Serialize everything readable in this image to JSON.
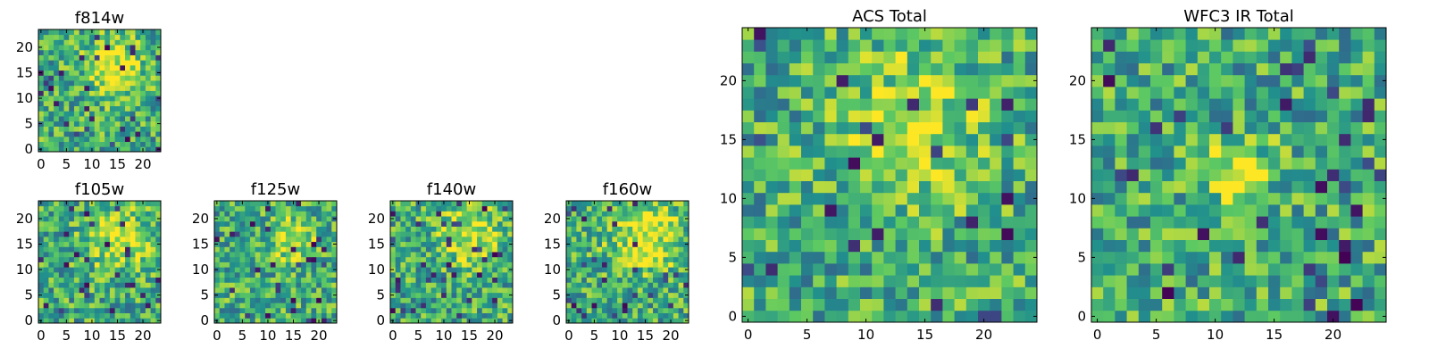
{
  "chart_data": [
    {
      "type": "heatmap",
      "title": "f814w",
      "grid_size": 24,
      "xlim": [
        0,
        24
      ],
      "ylim": [
        0,
        24
      ],
      "xticks": [
        "0",
        "5",
        "10",
        "15",
        "20"
      ],
      "yticks": [
        "0",
        "5",
        "10",
        "15",
        "20"
      ],
      "colormap": "viridis",
      "hotspot": {
        "x": 15,
        "y": 16,
        "radius": 4
      }
    },
    {
      "type": "heatmap",
      "title": "f105w",
      "grid_size": 24,
      "xlim": [
        0,
        24
      ],
      "ylim": [
        0,
        24
      ],
      "xticks": [
        "0",
        "5",
        "10",
        "15",
        "20"
      ],
      "yticks": [
        "0",
        "5",
        "10",
        "15",
        "20"
      ],
      "colormap": "viridis",
      "hotspot": {
        "x": 15,
        "y": 16,
        "radius": 4
      }
    },
    {
      "type": "heatmap",
      "title": "f125w",
      "grid_size": 24,
      "xlim": [
        0,
        24
      ],
      "ylim": [
        0,
        24
      ],
      "xticks": [
        "0",
        "5",
        "10",
        "15",
        "20"
      ],
      "yticks": [
        "0",
        "5",
        "10",
        "15",
        "20"
      ],
      "colormap": "viridis",
      "hotspot": {
        "x": 15,
        "y": 16,
        "radius": 3
      }
    },
    {
      "type": "heatmap",
      "title": "f140w",
      "grid_size": 24,
      "xlim": [
        0,
        24
      ],
      "ylim": [
        0,
        24
      ],
      "xticks": [
        "0",
        "5",
        "10",
        "15",
        "20"
      ],
      "yticks": [
        "0",
        "5",
        "10",
        "15",
        "20"
      ],
      "colormap": "viridis",
      "hotspot": {
        "x": 15,
        "y": 17,
        "radius": 4
      }
    },
    {
      "type": "heatmap",
      "title": "f160w",
      "grid_size": 24,
      "xlim": [
        0,
        24
      ],
      "ylim": [
        0,
        24
      ],
      "xticks": [
        "0",
        "5",
        "10",
        "15",
        "20"
      ],
      "yticks": [
        "0",
        "5",
        "10",
        "15",
        "20"
      ],
      "colormap": "viridis",
      "hotspot": {
        "x": 15,
        "y": 17,
        "radius": 5
      }
    },
    {
      "type": "heatmap",
      "title": "ACS Total",
      "grid_size": 25,
      "xlim": [
        0,
        25
      ],
      "ylim": [
        0,
        25
      ],
      "xticks": [
        "0",
        "5",
        "10",
        "15",
        "20"
      ],
      "yticks": [
        "0",
        "5",
        "10",
        "15",
        "20"
      ],
      "colormap": "viridis",
      "hotspot": {
        "x": 14,
        "y": 16,
        "radius": 4
      }
    },
    {
      "type": "heatmap",
      "title": "WFC3 IR Total",
      "grid_size": 25,
      "xlim": [
        0,
        25
      ],
      "ylim": [
        0,
        25
      ],
      "xticks": [
        "0",
        "5",
        "10",
        "15",
        "20"
      ],
      "yticks": [
        "0",
        "5",
        "10",
        "15",
        "20"
      ],
      "colormap": "viridis",
      "hotspot": {
        "x": 12,
        "y": 12,
        "radius": 2
      }
    }
  ],
  "colors": {
    "viridis": [
      "#440154",
      "#3b528b",
      "#21908d",
      "#5dc962",
      "#fde725"
    ],
    "axis": "#000000",
    "background": "#ffffff"
  }
}
